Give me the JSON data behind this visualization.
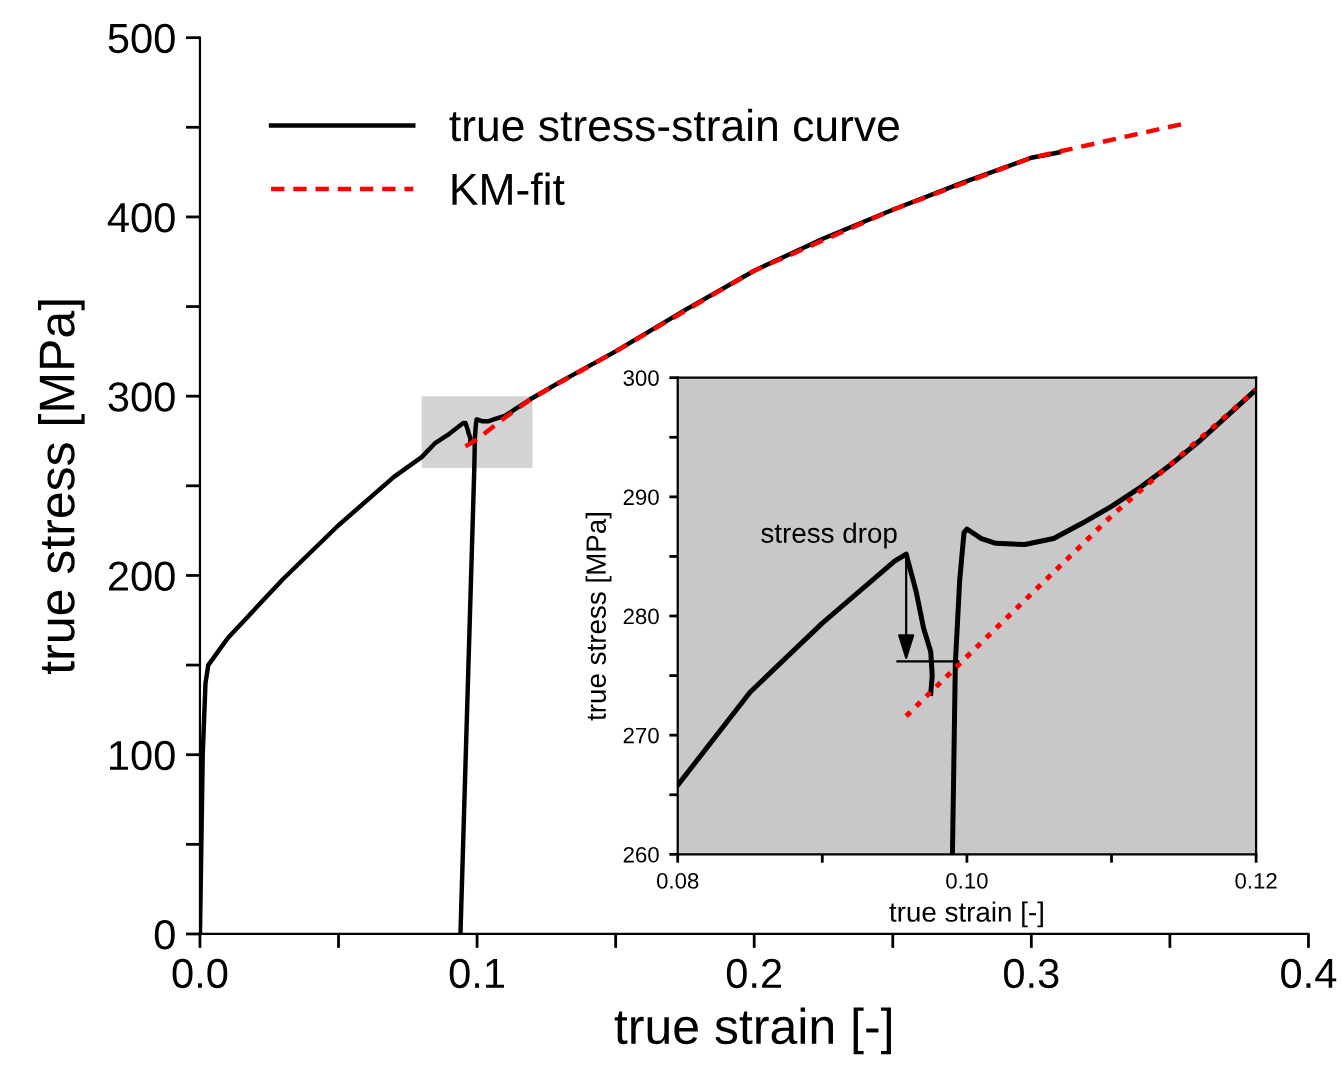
{
  "chart_data": [
    {
      "type": "line",
      "xlabel": "true strain [-]",
      "ylabel": "true stress [MPa]",
      "xlim": [
        0,
        0.4
      ],
      "xticks": [
        {
          "value": 0,
          "label": "0.0"
        },
        {
          "value": 0.05,
          "label": null
        },
        0.1,
        {
          "value": 0.15,
          "label": null
        },
        0.2,
        {
          "value": 0.25,
          "label": null
        },
        0.3,
        {
          "value": 0.35,
          "label": null
        },
        0.4
      ],
      "ylim": [
        0,
        500
      ],
      "yticks": [
        0,
        {
          "value": 50,
          "label": null
        },
        100,
        {
          "value": 150,
          "label": null
        },
        200,
        {
          "value": 250,
          "label": null
        },
        300,
        {
          "value": 350,
          "label": null
        },
        400,
        {
          "value": 450,
          "label": null
        },
        500
      ],
      "legend": "top left",
      "grid": false,
      "series": [
        {
          "name": "true stress-strain curve",
          "color": "#000000",
          "line_style": "solid",
          "x": [
            0,
            0.001,
            0.002,
            0.003,
            0.01,
            0.03,
            0.05,
            0.07,
            0.08,
            0.085,
            0.09,
            0.095,
            0.0958,
            0.0965,
            0.097,
            0.0975,
            0.0976,
            0.0975
          ],
          "values": [
            0,
            100,
            140,
            150,
            165,
            198,
            228,
            255,
            266,
            274,
            279,
            285,
            285,
            282,
            279,
            277,
            275,
            274
          ]
        },
        {
          "color": "#000000",
          "line_style": "solid",
          "x": [
            0.094,
            0.099,
            0.0992,
            0.0995,
            0.0998,
            0.1,
            0.102,
            0.104,
            0.106,
            0.108,
            0.11,
            0.112,
            0.114,
            0.116,
            0.118,
            0.12,
            0.13,
            0.15,
            0.175,
            0.2,
            0.225,
            0.25,
            0.275,
            0.3,
            0.31
          ],
          "values": [
            0,
            260,
            276,
            283,
            287,
            287,
            286,
            286,
            287,
            288,
            289,
            291,
            293,
            295,
            297,
            299,
            308,
            325,
            348,
            370,
            388,
            404,
            419,
            433,
            436
          ]
        },
        {
          "name": "KM-fit",
          "color": "#ff0000",
          "line_style": "dashed",
          "x": [
            0.0958,
            0.1,
            0.11,
            0.12,
            0.15,
            0.2,
            0.25,
            0.3,
            0.355
          ],
          "values": [
            272,
            276,
            288,
            299,
            325,
            370,
            404,
            433,
            452
          ]
        }
      ]
    },
    {
      "type": "line",
      "xlabel": "true strain [-]",
      "ylabel": "true stress [MPa]",
      "xlim": [
        0.08,
        0.12
      ],
      "xticks": [
        {
          "value": 0.08,
          "label": "0.08"
        },
        {
          "value": 0.09,
          "label": null
        },
        {
          "value": 0.1,
          "label": "0.10"
        },
        {
          "value": 0.11,
          "label": null
        },
        {
          "value": 0.12,
          "label": "0.12"
        }
      ],
      "ylim": [
        260,
        300
      ],
      "yticks": [
        260,
        {
          "value": 265,
          "label": null
        },
        270,
        {
          "value": 275,
          "label": null
        },
        280,
        {
          "value": 285,
          "label": null
        },
        290,
        {
          "value": 295,
          "label": null
        },
        300
      ],
      "grid": false,
      "legend": false,
      "annotations": [
        {
          "text": "stress drop",
          "x": 0.0958,
          "y": 285.2
        }
      ],
      "series": [
        {
          "color": "#000000",
          "line_style": "solid",
          "x": [
            0.08,
            0.085,
            0.09,
            0.095,
            0.0958,
            0.0965,
            0.097,
            0.0975,
            0.0976,
            0.0975
          ],
          "values": [
            265.8,
            273.6,
            279.4,
            284.6,
            285.2,
            282,
            279,
            277,
            275,
            273.5
          ]
        },
        {
          "color": "#000000",
          "line_style": "solid",
          "x": [
            0.099,
            0.0992,
            0.0995,
            0.0998,
            0.1,
            0.101,
            0.102,
            0.104,
            0.106,
            0.108,
            0.11,
            0.112,
            0.114,
            0.116,
            0.118,
            0.12
          ],
          "values": [
            260,
            276,
            283,
            287,
            287.3,
            286.5,
            286.1,
            286,
            286.5,
            287.8,
            289.2,
            290.8,
            292.6,
            294.6,
            296.8,
            299
          ]
        },
        {
          "color": "#ff0000",
          "line_style": "dotted",
          "x": [
            0.0958,
            0.0995,
            0.11,
            0.12
          ],
          "values": [
            271.6,
            276,
            288.4,
            299
          ]
        }
      ]
    }
  ]
}
